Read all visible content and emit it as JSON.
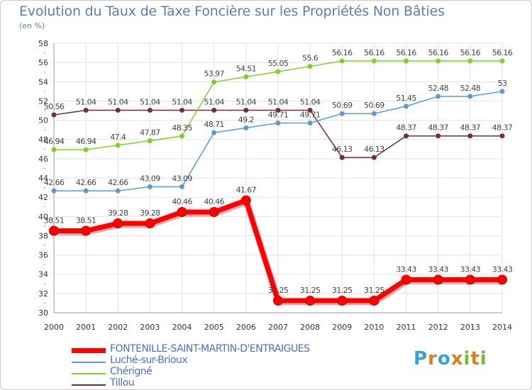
{
  "header": {
    "title": "Evolution du Taux de Taxe Foncière sur les Propriétés Non Bâties",
    "unit": "(en %)"
  },
  "logo": {
    "text": "Proxiti",
    "colors": [
      "#3aa0d8",
      "#e07b1f",
      "#3aa0d8",
      "#e07b1f",
      "#6cbf3a",
      "#e07b1f",
      "#6cbf3a"
    ]
  },
  "chart_data": {
    "type": "line",
    "title": "Evolution du Taux de Taxe Foncière sur les Propriétés Non Bâties",
    "ylabel": "(en %)",
    "xlabel": "",
    "x": [
      "2000",
      "2001",
      "2002",
      "2003",
      "2004",
      "2005",
      "2006",
      "2007",
      "2008",
      "2009",
      "2010",
      "2011",
      "2012",
      "2013",
      "2014"
    ],
    "ylim": [
      30,
      58
    ],
    "yticks": [
      30,
      32,
      34,
      36,
      38,
      40,
      42,
      44,
      46,
      48,
      50,
      52,
      54,
      56,
      58
    ],
    "grid": true,
    "legend_position": "bottom",
    "series": [
      {
        "name": "FONTENILLE-SAINT-MARTIN-D'ENTRAIGUES",
        "color": "#ff0000",
        "emphasis": true,
        "values": [
          38.51,
          38.51,
          39.28,
          39.28,
          40.46,
          40.46,
          41.67,
          31.25,
          31.25,
          31.25,
          31.25,
          33.43,
          33.43,
          33.43,
          33.43
        ],
        "labels": [
          "38.51",
          "38.51",
          "39.28",
          "39.28",
          "40.46",
          "40.46",
          "41.67",
          "31.25",
          "31.25",
          "31.25",
          "31.25",
          "33.43",
          "33.43",
          "33.43",
          "33.43"
        ]
      },
      {
        "name": "Luché-sur-Brioux",
        "color": "#5b9bd5",
        "values": [
          42.66,
          42.66,
          42.66,
          43.09,
          43.09,
          48.71,
          49.2,
          49.71,
          49.71,
          50.69,
          50.69,
          51.45,
          52.48,
          52.48,
          53
        ],
        "labels": [
          "42.66",
          "42.66",
          "42.66",
          "43.09",
          "43.09",
          "48.71",
          "49.2",
          "49.71",
          "49.71",
          "50.69",
          "50.69",
          "51.45",
          "52.48",
          "52.48",
          "53"
        ]
      },
      {
        "name": "Chérigné",
        "color": "#7ed321",
        "values": [
          46.94,
          46.94,
          47.4,
          47.87,
          48.35,
          53.97,
          54.51,
          55.05,
          55.6,
          56.16,
          56.16,
          56.16,
          56.16,
          56.16,
          56.16
        ],
        "labels": [
          "46.94",
          "46.94",
          "47.4",
          "47.87",
          "48.35",
          "53.97",
          "54.51",
          "55.05",
          "55.6",
          "56.16",
          "56.16",
          "56.16",
          "56.16",
          "56.16",
          "56.16"
        ]
      },
      {
        "name": "Tillou",
        "color": "#7b2d2d",
        "values": [
          50.56,
          51.04,
          51.04,
          51.04,
          51.04,
          51.04,
          51.04,
          51.04,
          51.04,
          46.13,
          46.13,
          48.37,
          48.37,
          48.37,
          48.37
        ],
        "labels": [
          "50.56",
          "51.04",
          "51.04",
          "51.04",
          "51.04",
          "51.04",
          "51.04",
          "51.04",
          "51.04",
          "46.13",
          "46.13",
          "48.37",
          "48.37",
          "48.37",
          "48.37"
        ]
      }
    ]
  }
}
